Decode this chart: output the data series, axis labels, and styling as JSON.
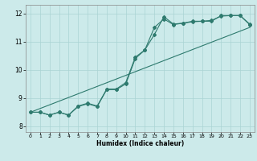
{
  "xlabel": "Humidex (Indice chaleur)",
  "ylabel": "",
  "bg_color": "#cceaea",
  "grid_color": "#aad4d4",
  "line_color": "#2e7a6e",
  "xlim": [
    -0.5,
    23.5
  ],
  "ylim": [
    7.8,
    12.3
  ],
  "xticks": [
    0,
    1,
    2,
    3,
    4,
    5,
    6,
    7,
    8,
    9,
    10,
    11,
    12,
    13,
    14,
    15,
    16,
    17,
    18,
    19,
    20,
    21,
    22,
    23
  ],
  "yticks": [
    8,
    9,
    10,
    11,
    12
  ],
  "line1_x": [
    0,
    1,
    2,
    3,
    4,
    5,
    6,
    7,
    8,
    9,
    10,
    11,
    12,
    13,
    14,
    15,
    16,
    17,
    18,
    19,
    20,
    21,
    22,
    23
  ],
  "line1_y": [
    8.5,
    8.5,
    8.4,
    8.5,
    8.4,
    8.7,
    8.8,
    8.7,
    9.3,
    9.3,
    9.5,
    10.4,
    10.7,
    11.5,
    11.8,
    11.6,
    11.65,
    11.7,
    11.72,
    11.75,
    11.9,
    11.92,
    11.92,
    11.6
  ],
  "line2_x": [
    0,
    1,
    2,
    3,
    4,
    5,
    6,
    7,
    8,
    9,
    10,
    11,
    12,
    13,
    14,
    15,
    16,
    17,
    18,
    19,
    20,
    21,
    22,
    23
  ],
  "line2_y": [
    8.5,
    8.5,
    8.4,
    8.5,
    8.4,
    8.72,
    8.82,
    8.72,
    9.32,
    9.32,
    9.55,
    10.45,
    10.7,
    11.25,
    11.88,
    11.62,
    11.65,
    11.72,
    11.72,
    11.72,
    11.92,
    11.92,
    11.92,
    11.62
  ],
  "line3_x": [
    0,
    23
  ],
  "line3_y": [
    8.5,
    11.5
  ]
}
